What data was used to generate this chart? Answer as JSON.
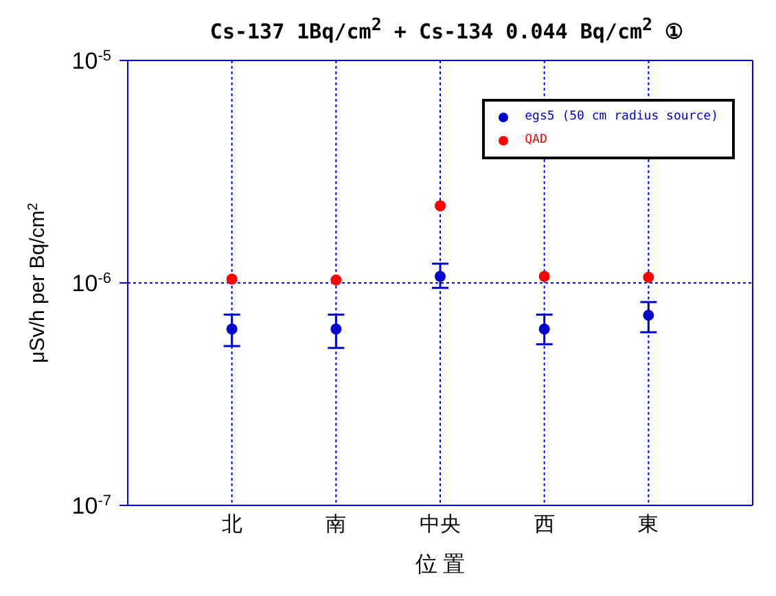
{
  "chart_data": {
    "type": "scatter",
    "title": "Cs-137 1Bq/cm$^{2}$ + Cs-134 0.044 Bq/cm$^{2}$ ①",
    "xlabel": "位 置",
    "ylabel": "μSv/h per Bq/cm$^{2}$",
    "categories": [
      "北",
      "南",
      "中央",
      "西",
      "東"
    ],
    "series": [
      {
        "name": "egs5 (50 cm radius source)",
        "color": "#0000cc",
        "values": [
          6.2e-07,
          6.2e-07,
          1.07e-06,
          6.2e-07,
          7.15e-07
        ],
        "errors": [
          [
            5.2e-07,
            7.2e-07
          ],
          [
            5.1e-07,
            7.2e-07
          ],
          [
            9.5e-07,
            1.22e-06
          ],
          [
            5.3e-07,
            7.2e-07
          ],
          [
            6e-07,
            8.2e-07
          ]
        ]
      },
      {
        "name": "QAD",
        "color": "#ff0000",
        "values": [
          1.04e-06,
          1.03e-06,
          2.22e-06,
          1.07e-06,
          1.06e-06
        ]
      }
    ],
    "log": "y",
    "ylim": [
      1e-07,
      1e-05
    ],
    "yticks": [
      {
        "value": 1e-07,
        "label": "10$^{-7}$"
      },
      {
        "value": 1e-06,
        "label": "10$^{-6}$"
      },
      {
        "value": 1e-05,
        "label": "10$^{-5}$"
      }
    ],
    "grid": true,
    "legend": "top right",
    "marker": "circle"
  }
}
